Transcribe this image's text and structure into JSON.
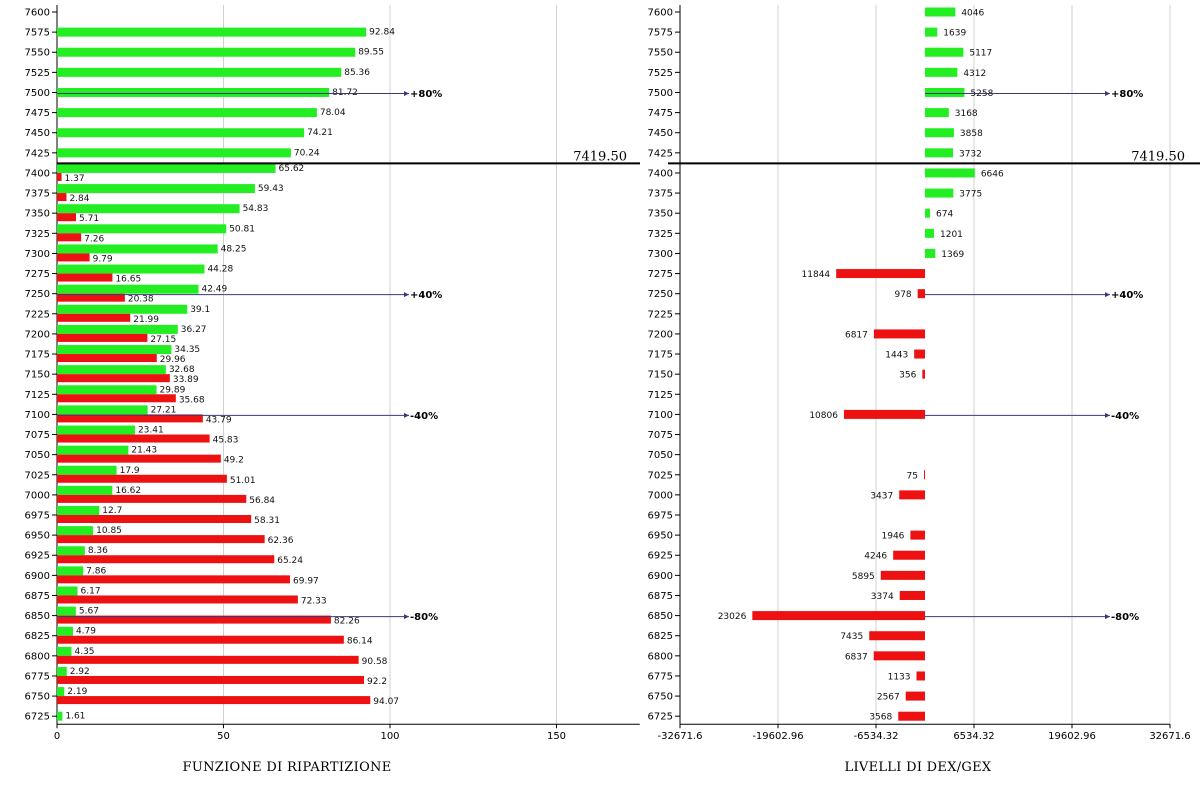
{
  "chart_data": [
    {
      "type": "bar",
      "title": "FUNZIONE DI RIPARTIZIONE",
      "orientation": "horizontal",
      "categories": [
        "7600",
        "7575",
        "7550",
        "7525",
        "7500",
        "7475",
        "7450",
        "7425",
        "7400",
        "7375",
        "7350",
        "7325",
        "7300",
        "7275",
        "7250",
        "7225",
        "7200",
        "7175",
        "7150",
        "7125",
        "7100",
        "7075",
        "7050",
        "7025",
        "7000",
        "6975",
        "6950",
        "6925",
        "6900",
        "6875",
        "6850",
        "6825",
        "6800",
        "6775",
        "6750",
        "6725"
      ],
      "series": [
        {
          "color": "#22ee22",
          "values": [
            null,
            92.84,
            89.55,
            85.36,
            81.72,
            78.04,
            74.21,
            70.24,
            65.62,
            59.43,
            54.83,
            50.81,
            48.25,
            44.28,
            42.49,
            39.1,
            36.27,
            34.35,
            32.68,
            29.89,
            27.21,
            23.41,
            21.43,
            17.9,
            16.62,
            12.7,
            10.85,
            8.36,
            7.86,
            6.17,
            5.67,
            4.79,
            4.35,
            2.92,
            2.19,
            1.61
          ]
        },
        {
          "color": "#ee1111",
          "values": [
            null,
            null,
            null,
            null,
            null,
            null,
            null,
            null,
            1.37,
            2.84,
            5.71,
            7.26,
            9.79,
            16.65,
            20.38,
            21.99,
            27.15,
            29.96,
            33.89,
            35.68,
            43.79,
            45.83,
            49.2,
            51.01,
            56.84,
            58.31,
            62.36,
            65.24,
            69.97,
            72.33,
            82.26,
            86.14,
            90.58,
            92.2,
            94.07,
            null
          ]
        }
      ],
      "xticks": [
        "0",
        "50",
        "100",
        "150"
      ],
      "xlim": [
        0,
        175
      ],
      "grid": true,
      "current_price": {
        "label": "7419.50"
      },
      "percent_markers": [
        {
          "strike": "7500",
          "label": "+80%"
        },
        {
          "strike": "7250",
          "label": "+40%"
        },
        {
          "strike": "7100",
          "label": "-40%"
        },
        {
          "strike": "6850",
          "label": "-80%"
        }
      ]
    },
    {
      "type": "bar",
      "title": "LIVELLI DI DEX/GEX",
      "orientation": "horizontal",
      "categories": [
        "7600",
        "7575",
        "7550",
        "7525",
        "7500",
        "7475",
        "7450",
        "7425",
        "7400",
        "7375",
        "7350",
        "7325",
        "7300",
        "7275",
        "7250",
        "7225",
        "7200",
        "7175",
        "7150",
        "7125",
        "7100",
        "7075",
        "7050",
        "7025",
        "7000",
        "6975",
        "6950",
        "6925",
        "6900",
        "6875",
        "6850",
        "6825",
        "6800",
        "6775",
        "6750",
        "6725"
      ],
      "values": [
        4046,
        1639,
        5117,
        4312,
        5258,
        3168,
        3858,
        3732,
        6646,
        3775,
        674,
        1201,
        1369,
        -11844,
        -978,
        null,
        -6817,
        -1443,
        -356,
        null,
        -10806,
        null,
        null,
        -75,
        -3437,
        null,
        -1946,
        -4246,
        -5895,
        -3374,
        -23026,
        -7435,
        -6837,
        -1133,
        -2567,
        -3568
      ],
      "labels": [
        "4046",
        "1639",
        "5117",
        "4312",
        "5258",
        "3168",
        "3858",
        "3732",
        "6646",
        "3775",
        "674",
        "1201",
        "1369",
        "11844",
        "978",
        "",
        "6817",
        "1443",
        "356",
        "",
        "10806",
        "",
        "",
        "75",
        "3437",
        "",
        "1946",
        "4246",
        "5895",
        "3374",
        "23026",
        "7435",
        "6837",
        "1133",
        "2567",
        "3568"
      ],
      "xticks": [
        "-32671.6",
        "-19602.96",
        "-6534.32",
        "6534.32",
        "19602.96",
        "32671.6"
      ],
      "xlim": [
        -32671.6,
        32671.6
      ],
      "grid": true,
      "positive_color": "#22ee22",
      "negative_color": "#ee1111",
      "current_price": {
        "label": "7419.50"
      },
      "percent_markers": [
        {
          "strike": "7500",
          "label": "+80%"
        },
        {
          "strike": "7250",
          "label": "+40%"
        },
        {
          "strike": "7100",
          "label": "-40%"
        },
        {
          "strike": "6850",
          "label": "-80%"
        }
      ]
    }
  ]
}
